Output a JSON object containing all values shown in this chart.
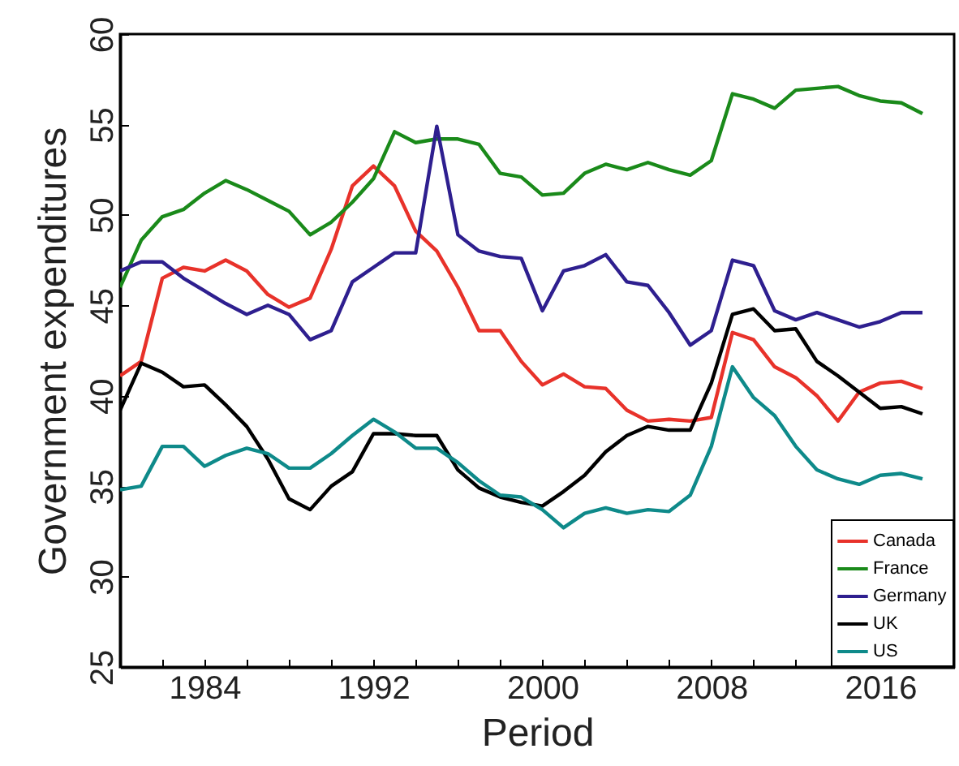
{
  "chart_data": {
    "type": "line",
    "xlabel": "Period",
    "ylabel": "Government expenditures",
    "x": [
      1980,
      1981,
      1982,
      1983,
      1984,
      1985,
      1986,
      1987,
      1988,
      1989,
      1990,
      1991,
      1992,
      1993,
      1994,
      1995,
      1996,
      1997,
      1998,
      1999,
      2000,
      2001,
      2002,
      2003,
      2004,
      2005,
      2006,
      2007,
      2008,
      2009,
      2010,
      2011,
      2012,
      2013,
      2014,
      2015,
      2016,
      2017,
      2018
    ],
    "xlim": [
      1980,
      2019.5
    ],
    "xticks": [
      {
        "value": 1982,
        "label": null
      },
      1984,
      {
        "value": 1986,
        "label": null
      },
      {
        "value": 1988,
        "label": null
      },
      {
        "value": 1990,
        "label": null
      },
      1992,
      {
        "value": 1994,
        "label": null
      },
      {
        "value": 1996,
        "label": null
      },
      {
        "value": 1998,
        "label": null
      },
      2000,
      {
        "value": 2002,
        "label": null
      },
      {
        "value": 2004,
        "label": null
      },
      {
        "value": 2006,
        "label": null
      },
      2008,
      {
        "value": 2010,
        "label": null
      },
      {
        "value": 2012,
        "label": null
      },
      {
        "value": 2014,
        "label": null
      },
      2016,
      {
        "value": 2018,
        "label": null
      }
    ],
    "ylim": [
      25,
      60
    ],
    "yticks": [
      25,
      30,
      35,
      40,
      45,
      50,
      55,
      60
    ],
    "grid": false,
    "legend": "bottom right",
    "series": [
      {
        "name": "Canada",
        "color": "#e8322a",
        "values": [
          41.1,
          41.9,
          46.5,
          47.1,
          46.9,
          47.5,
          46.9,
          45.6,
          44.9,
          45.4,
          48.1,
          51.6,
          52.7,
          51.6,
          49.1,
          48.0,
          46.0,
          43.6,
          43.6,
          41.9,
          40.6,
          41.2,
          40.5,
          40.4,
          39.2,
          38.6,
          38.7,
          38.6,
          38.8,
          43.5,
          43.1,
          41.6,
          41.0,
          40.0,
          38.6,
          40.2,
          40.7,
          40.8,
          40.4
        ]
      },
      {
        "name": "France",
        "color": "#1a8a1a",
        "values": [
          46.0,
          48.6,
          49.9,
          50.3,
          51.2,
          51.9,
          51.4,
          50.8,
          50.2,
          48.9,
          49.6,
          50.7,
          52.0,
          54.6,
          54.0,
          54.2,
          54.2,
          53.9,
          52.3,
          52.1,
          51.1,
          51.2,
          52.3,
          52.8,
          52.5,
          52.9,
          52.5,
          52.2,
          53.0,
          56.7,
          56.4,
          55.9,
          56.9,
          57.0,
          57.1,
          56.6,
          56.3,
          56.2,
          55.6
        ]
      },
      {
        "name": "Germany",
        "color": "#2e1f8f",
        "values": [
          46.9,
          47.4,
          47.4,
          46.5,
          45.8,
          45.1,
          44.5,
          45.0,
          44.5,
          43.1,
          43.6,
          46.3,
          47.1,
          47.9,
          47.9,
          54.9,
          48.9,
          48.0,
          47.7,
          47.6,
          44.7,
          46.9,
          47.2,
          47.8,
          46.3,
          46.1,
          44.6,
          42.8,
          43.6,
          47.5,
          47.2,
          44.7,
          44.2,
          44.6,
          44.2,
          43.8,
          44.1,
          44.6,
          44.6
        ]
      },
      {
        "name": "UK",
        "color": "#000000",
        "values": [
          39.2,
          41.8,
          41.3,
          40.5,
          40.6,
          39.5,
          38.3,
          36.5,
          34.3,
          33.7,
          35.0,
          35.8,
          37.9,
          37.9,
          37.8,
          37.8,
          35.9,
          34.9,
          34.4,
          34.1,
          33.9,
          34.7,
          35.6,
          36.9,
          37.8,
          38.3,
          38.1,
          38.1,
          40.7,
          44.5,
          44.8,
          43.6,
          43.7,
          41.9,
          41.1,
          40.2,
          39.3,
          39.4,
          39.0
        ]
      },
      {
        "name": "US",
        "color": "#0e8a8a",
        "values": [
          34.8,
          35.0,
          37.2,
          37.2,
          36.1,
          36.7,
          37.1,
          36.8,
          36.0,
          36.0,
          36.8,
          37.8,
          38.7,
          38.0,
          37.1,
          37.1,
          36.3,
          35.3,
          34.5,
          34.4,
          33.7,
          32.7,
          33.5,
          33.8,
          33.5,
          33.7,
          33.6,
          34.5,
          37.2,
          41.6,
          39.9,
          38.9,
          37.2,
          35.9,
          35.4,
          35.1,
          35.6,
          35.7,
          35.4
        ]
      }
    ]
  }
}
